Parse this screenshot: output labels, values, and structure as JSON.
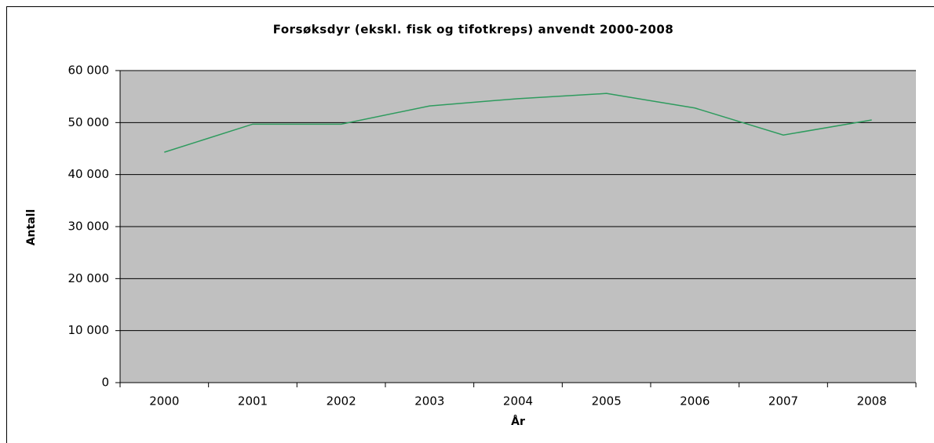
{
  "chart_data": {
    "type": "line",
    "title": "Forsøksdyr (ekskl. fisk og tifotkreps) anvendt 2000-2008",
    "x_label": "År",
    "y_label": "Antall",
    "categories": [
      "2000",
      "2001",
      "2002",
      "2003",
      "2004",
      "2005",
      "2006",
      "2007",
      "2008"
    ],
    "series": [
      {
        "name": "Antall",
        "color": "#2e9b5e",
        "values": [
          44300,
          49700,
          49700,
          53200,
          54600,
          55600,
          52800,
          47600,
          50500
        ]
      }
    ],
    "ylim": [
      0,
      60000
    ],
    "yticks": [
      0,
      {
        "value": 10000,
        "label": "10 000"
      },
      {
        "value": 20000,
        "label": "20 000"
      },
      {
        "value": 30000,
        "label": "30 000"
      },
      {
        "value": 40000,
        "label": "40 000"
      },
      {
        "value": 50000,
        "label": "50 000"
      },
      {
        "value": 60000,
        "label": "60 000"
      }
    ],
    "grid": true,
    "plot_background": "#c0c0c0"
  }
}
